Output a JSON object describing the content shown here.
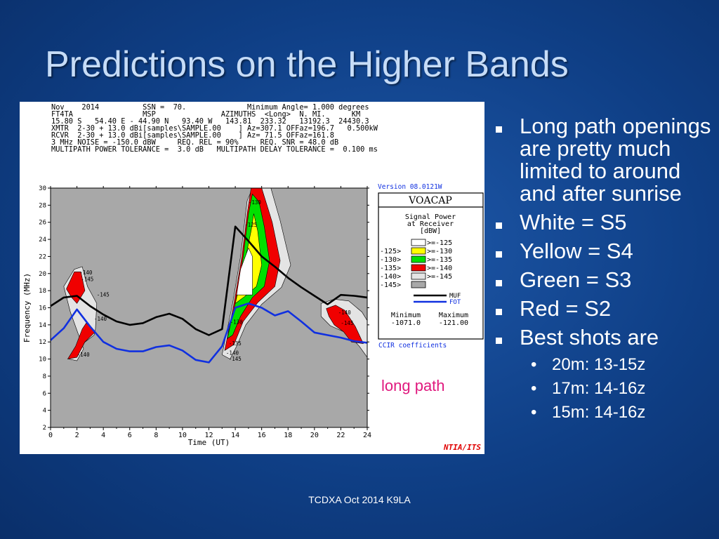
{
  "slide": {
    "title": "Predictions on the Higher Bands",
    "footer": "TCDXA Oct 2014 K9LA",
    "annotation": "long path",
    "bullets": [
      {
        "text": "Long path openings are pretty much limited to around and after sunrise",
        "level": 1
      },
      {
        "text": "White = S5",
        "level": 1
      },
      {
        "text": "Yellow = S4",
        "level": 1
      },
      {
        "text": "Green = S3",
        "level": 1
      },
      {
        "text": "Red = S2",
        "level": 1
      },
      {
        "text": "Best shots are",
        "level": 1
      },
      {
        "text": "20m: 13-15z",
        "level": 2
      },
      {
        "text": "17m: 14-16z",
        "level": 2
      },
      {
        "text": "15m: 14-16z",
        "level": 2
      }
    ]
  },
  "chart_header": [
    "Nov    2014          SSN =  70.              Minimum Angle= 1.000 degrees",
    "FT4TA                MSP               AZIMUTHS  <Long>  N. MI.      KM",
    "15.80 S   54.40 E - 44.90 N   93.40 W   143.81  233.32   13192.3  24430.3",
    "XMTR  2-30 + 13.0 dBi[samples\\SAMPLE.00    ] Az=307.1 OFFaz=196.7   0.500kW",
    "RCVR  2-30 + 13.0 dBi[samples\\SAMPLE.00    ] Az= 71.5 OFFaz=161.8",
    "3 MHz NOISE = -150.0 dBW     REQ. REL = 90%     REQ. SNR = 48.0 dB",
    "MULTIPATH POWER TOLERANCE =  3.0 dB   MULTIPATH DELAY TOLERANCE =  0.100 ms"
  ],
  "chart_data": {
    "type": "area",
    "xlabel": "Time (UT)",
    "ylabel": "Frequency (MHz)",
    "xlim": [
      0,
      24
    ],
    "ylim": [
      2,
      30
    ],
    "xticks": [
      0,
      2,
      4,
      6,
      8,
      10,
      12,
      14,
      16,
      18,
      20,
      22,
      24
    ],
    "yticks": [
      2,
      4,
      6,
      8,
      10,
      12,
      14,
      16,
      18,
      20,
      22,
      24,
      26,
      28,
      30
    ],
    "series": [
      {
        "name": "MUF",
        "type": "line",
        "color": "#000000",
        "x": [
          0,
          1,
          2,
          3,
          4,
          5,
          6,
          7,
          8,
          9,
          10,
          11,
          12,
          13,
          14,
          15,
          16,
          17,
          18,
          19,
          20,
          21,
          22,
          23,
          24
        ],
        "y": [
          16.2,
          17.2,
          17.4,
          16.2,
          15.2,
          14.4,
          14.0,
          14.2,
          14.9,
          15.3,
          14.7,
          13.5,
          12.8,
          13.5,
          25.5,
          23.8,
          22.0,
          20.8,
          19.5,
          18.4,
          17.4,
          16.4,
          17.5,
          17.4,
          17.2
        ]
      },
      {
        "name": "FOT",
        "type": "line",
        "color": "#1030e0",
        "x": [
          0,
          1,
          2,
          3,
          4,
          5,
          6,
          7,
          8,
          9,
          10,
          11,
          12,
          13,
          14,
          15,
          16,
          17,
          18,
          19,
          20,
          21,
          22,
          23,
          24
        ],
        "y": [
          12.2,
          13.6,
          15.8,
          13.8,
          12.0,
          11.2,
          10.9,
          10.9,
          11.4,
          11.6,
          11.0,
          9.9,
          9.6,
          11.5,
          16.0,
          16.5,
          16.0,
          15.1,
          15.6,
          14.4,
          13.1,
          12.8,
          12.5,
          12.1,
          11.9
        ]
      }
    ],
    "contour_labels": [
      {
        "text": "-140",
        "x": 2.2,
        "y": 19.9
      },
      {
        "text": "-145",
        "x": 2.3,
        "y": 19.1
      },
      {
        "text": "-145",
        "x": 3.5,
        "y": 17.3
      },
      {
        "text": "-140",
        "x": 3.3,
        "y": 14.5
      },
      {
        "text": "-140",
        "x": 2.0,
        "y": 10.3
      },
      {
        "text": "-130",
        "x": 15.0,
        "y": 28.1
      },
      {
        "text": "-125",
        "x": 14.7,
        "y": 25.5
      },
      {
        "text": "-130",
        "x": 13.6,
        "y": 14.1
      },
      {
        "text": "-135",
        "x": 13.5,
        "y": 11.6
      },
      {
        "text": "-140",
        "x": 13.3,
        "y": 10.5
      },
      {
        "text": "-145",
        "x": 13.5,
        "y": 9.8
      },
      {
        "text": "-140",
        "x": 21.8,
        "y": 15.2
      },
      {
        "text": "-145",
        "x": 22.0,
        "y": 14.0
      }
    ],
    "regions": [
      {
        "level": "-145",
        "polygon": [
          [
            13.0,
            10.5
          ],
          [
            13.8,
            16.5
          ],
          [
            14.4,
            22.0
          ],
          [
            14.9,
            28.5
          ],
          [
            15.3,
            30.0
          ],
          [
            16.7,
            30.0
          ],
          [
            17.4,
            26.2
          ],
          [
            18.2,
            21.0
          ],
          [
            17.5,
            18.4
          ],
          [
            16.0,
            16.4
          ],
          [
            14.8,
            14.0
          ],
          [
            14.1,
            11.5
          ],
          [
            13.6,
            10.0
          ]
        ]
      },
      {
        "level": "-140",
        "polygon": [
          [
            13.2,
            11.0
          ],
          [
            13.9,
            16.5
          ],
          [
            14.5,
            22.0
          ],
          [
            14.9,
            27.0
          ],
          [
            15.2,
            30.0
          ],
          [
            16.0,
            30.0
          ],
          [
            16.8,
            26.0
          ],
          [
            17.4,
            21.5
          ],
          [
            17.0,
            18.5
          ],
          [
            15.7,
            16.6
          ],
          [
            14.6,
            14.4
          ],
          [
            13.9,
            11.7
          ]
        ]
      },
      {
        "level": "-135",
        "polygon": [
          [
            13.4,
            12.4
          ],
          [
            14.0,
            16.5
          ],
          [
            14.6,
            22.0
          ],
          [
            15.0,
            27.0
          ],
          [
            15.3,
            29.3
          ],
          [
            15.8,
            28.4
          ],
          [
            16.2,
            25.5
          ],
          [
            16.6,
            21.5
          ],
          [
            16.2,
            18.5
          ],
          [
            15.3,
            17.2
          ],
          [
            14.4,
            15.0
          ],
          [
            13.8,
            12.8
          ]
        ]
      },
      {
        "level": "-130",
        "polygon": [
          [
            14.0,
            16.5
          ],
          [
            14.6,
            20.5
          ],
          [
            15.2,
            25.0
          ],
          [
            15.4,
            27.0
          ],
          [
            15.7,
            25.0
          ],
          [
            16.0,
            21.0
          ],
          [
            15.6,
            18.5
          ],
          [
            14.7,
            17.3
          ]
        ]
      },
      {
        "level": "-125",
        "polygon": [
          [
            14.1,
            17.5
          ],
          [
            14.4,
            20.5
          ],
          [
            15.0,
            23.0
          ],
          [
            15.3,
            22.0
          ],
          [
            15.3,
            17.5
          ]
        ]
      },
      {
        "level": "-145",
        "polygon": [
          [
            1.0,
            18.5
          ],
          [
            1.8,
            20.5
          ],
          [
            2.4,
            20.8
          ],
          [
            2.8,
            18.5
          ],
          [
            3.5,
            16.5
          ],
          [
            3.4,
            13.5
          ],
          [
            3.3,
            12.8
          ],
          [
            2.2,
            11.5
          ],
          [
            1.4,
            10.0
          ],
          [
            2.0,
            9.8
          ],
          [
            2.5,
            11.2
          ],
          [
            1.5,
            15.5
          ]
        ]
      },
      {
        "level": "-140",
        "polygon": [
          [
            1.2,
            18.2
          ],
          [
            1.8,
            20.2
          ],
          [
            2.3,
            20.2
          ],
          [
            2.6,
            18.0
          ],
          [
            2.0,
            16.5
          ],
          [
            1.6,
            17.2
          ]
        ]
      },
      {
        "level": "-140",
        "polygon": [
          [
            1.3,
            10.0
          ],
          [
            1.9,
            11.5
          ],
          [
            2.4,
            13.5
          ],
          [
            2.7,
            14.2
          ],
          [
            3.4,
            13.2
          ],
          [
            2.6,
            12.0
          ],
          [
            2.0,
            10.2
          ]
        ]
      },
      {
        "level": "-145",
        "polygon": [
          [
            20.5,
            16.5
          ],
          [
            21.5,
            17.0
          ],
          [
            22.6,
            16.8
          ],
          [
            23.6,
            15.5
          ],
          [
            24.0,
            14.5
          ],
          [
            24.0,
            10.2
          ],
          [
            23.4,
            11.5
          ],
          [
            22.5,
            13.0
          ],
          [
            21.2,
            13.9
          ],
          [
            20.5,
            15.0
          ]
        ]
      },
      {
        "level": "-140",
        "polygon": [
          [
            20.9,
            15.9
          ],
          [
            21.6,
            16.3
          ],
          [
            22.3,
            15.7
          ],
          [
            23.1,
            13.8
          ],
          [
            23.7,
            11.8
          ],
          [
            22.8,
            12.0
          ],
          [
            22.2,
            13.2
          ],
          [
            21.5,
            14.0
          ],
          [
            21.1,
            15.0
          ]
        ]
      }
    ],
    "legend": {
      "version": "Version 08.0121W",
      "program": "VOACAP",
      "heading": [
        "Signal Power",
        "at Receiver",
        "[dBW]"
      ],
      "rows": [
        {
          "left": "",
          "right": ">=-125",
          "color": "#ffffff"
        },
        {
          "left": "-125>",
          "right": ">=-130",
          "color": "#ffff00"
        },
        {
          "left": "-130>",
          "right": ">=-135",
          "color": "#00e000"
        },
        {
          "left": "-135>",
          "right": ">=-140",
          "color": "#f00000"
        },
        {
          "left": "-140>",
          "right": ">=-145",
          "color": "#e4e4e4"
        },
        {
          "left": "-145>",
          "right": "",
          "color": "#a8a8a8"
        }
      ],
      "lines": [
        {
          "name": "MUF",
          "color": "#000000"
        },
        {
          "name": "FOT",
          "color": "#1030e0"
        }
      ],
      "minimum_label": "Minimum",
      "maximum_label": "Maximum",
      "minimum": "-1071.0",
      "maximum": "-121.00",
      "coeff": "CCIR coefficients",
      "org": "NTIA/ITS"
    },
    "background_color": "#a8a8a8",
    "grid": false
  }
}
